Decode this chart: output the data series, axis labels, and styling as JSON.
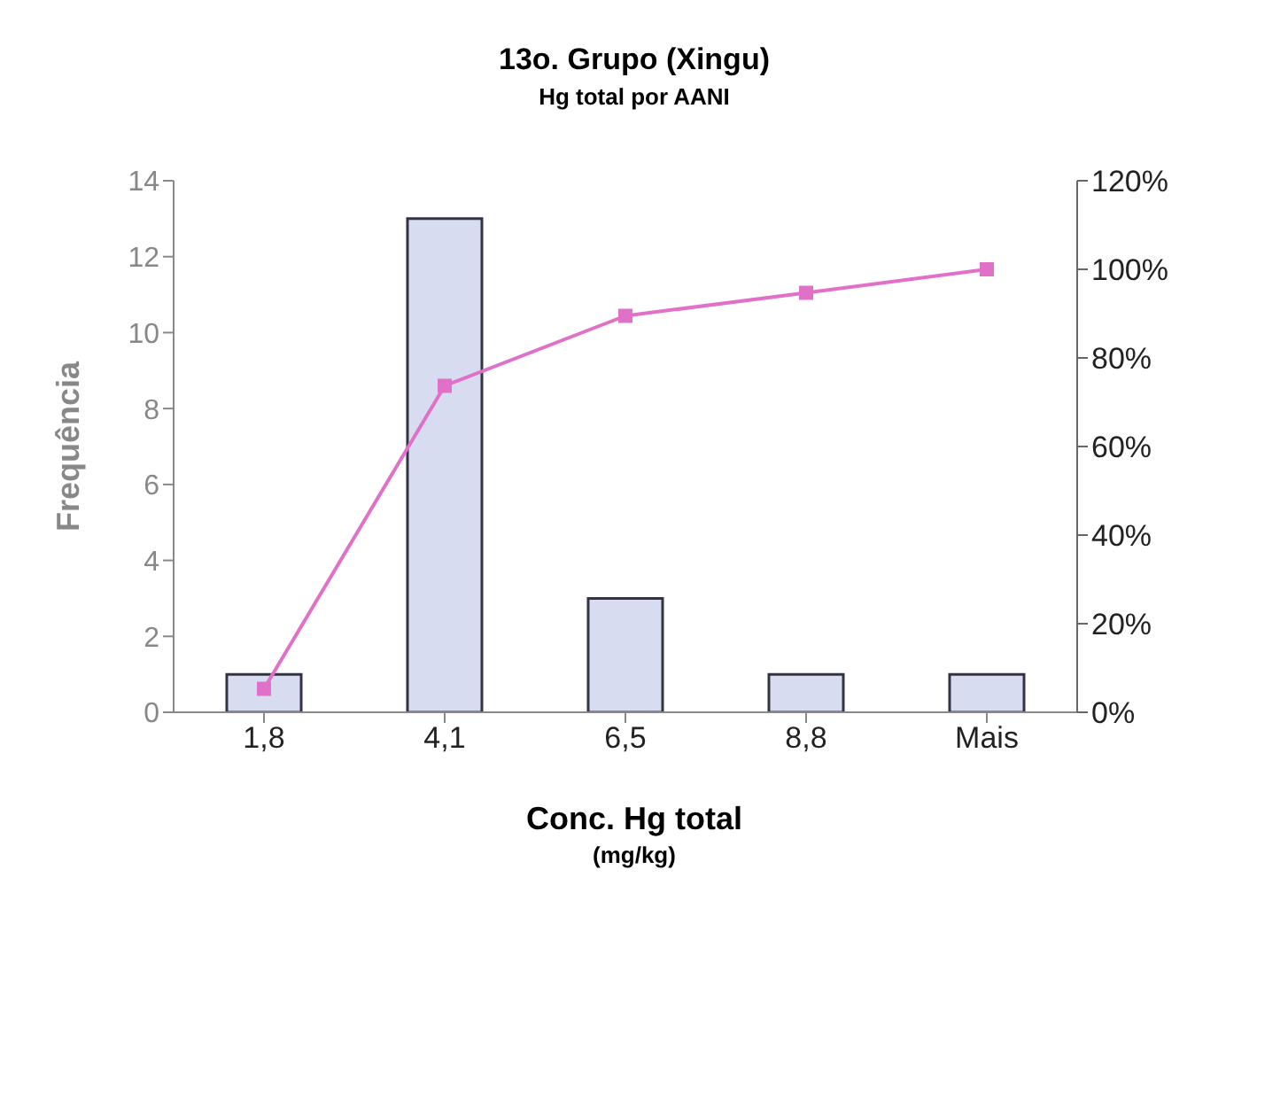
{
  "chart_data": {
    "type": "bar",
    "title": "13o. Grupo (Xingu)",
    "subtitle": "Hg total por AANI",
    "xlabel": "Conc. Hg total",
    "ylabel": "Frequência",
    "annotations": [
      "(mg/kg)"
    ],
    "categories": [
      "1,8",
      "4,1",
      "6,5",
      "8,8",
      "Mais"
    ],
    "series": [
      {
        "color": "#d8dcf0",
        "values": [
          1,
          13,
          3,
          1,
          1
        ]
      },
      {
        "type": "line",
        "axis": "y2",
        "color": "#e070c8",
        "marker": "square",
        "values": [
          5.3,
          73.7,
          89.5,
          94.7,
          100
        ]
      }
    ],
    "ylim": [
      0,
      14
    ],
    "yticks": [
      0,
      2,
      4,
      6,
      8,
      10,
      12,
      14
    ],
    "y2lim": [
      0,
      120
    ],
    "y2ticks": [
      {
        "value": 0,
        "label": "0%"
      },
      {
        "value": 20,
        "label": "20%"
      },
      {
        "value": 40,
        "label": "40%"
      },
      {
        "value": 60,
        "label": "60%"
      },
      {
        "value": 80,
        "label": "80%"
      },
      {
        "value": 100,
        "label": "100%"
      },
      {
        "value": 120,
        "label": "120%"
      }
    ],
    "grid": false,
    "legend": false
  }
}
